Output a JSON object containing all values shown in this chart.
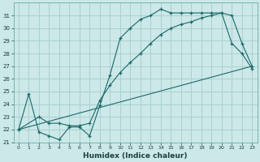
{
  "xlabel": "Humidex (Indice chaleur)",
  "bg_color": "#cce8e8",
  "grid_color": "#aad0d0",
  "line_color": "#1a6868",
  "xlim": [
    -0.5,
    23.5
  ],
  "ylim": [
    21,
    32
  ],
  "yticks": [
    21,
    22,
    23,
    24,
    25,
    26,
    27,
    28,
    29,
    30,
    31
  ],
  "xticks": [
    0,
    1,
    2,
    3,
    4,
    5,
    6,
    7,
    8,
    9,
    10,
    11,
    12,
    13,
    14,
    15,
    16,
    17,
    18,
    19,
    20,
    21,
    22,
    23
  ],
  "line1_x": [
    0,
    1,
    2,
    3,
    4,
    5,
    6,
    7,
    8,
    9,
    10,
    11,
    12,
    13,
    14,
    15,
    16,
    17,
    18,
    19,
    20,
    21,
    22,
    23
  ],
  "line1_y": [
    22.0,
    24.8,
    21.8,
    21.5,
    21.2,
    22.2,
    22.2,
    21.5,
    23.9,
    26.3,
    29.2,
    30.0,
    30.7,
    31.0,
    31.5,
    31.2,
    31.2,
    31.2,
    31.2,
    31.2,
    31.2,
    31.0,
    28.8,
    27.0
  ],
  "line2_x": [
    0,
    2,
    3,
    4,
    5,
    6,
    7,
    8,
    9,
    10,
    11,
    12,
    13,
    14,
    15,
    16,
    17,
    18,
    19,
    20,
    21,
    22,
    23
  ],
  "line2_y": [
    22.0,
    23.0,
    22.5,
    22.5,
    22.3,
    22.3,
    22.5,
    24.3,
    25.5,
    26.5,
    27.3,
    28.0,
    28.8,
    29.5,
    30.0,
    30.3,
    30.5,
    30.8,
    31.0,
    31.2,
    28.8,
    28.0,
    26.8
  ],
  "line3_x": [
    0,
    23
  ],
  "line3_y": [
    22.0,
    27.0
  ]
}
